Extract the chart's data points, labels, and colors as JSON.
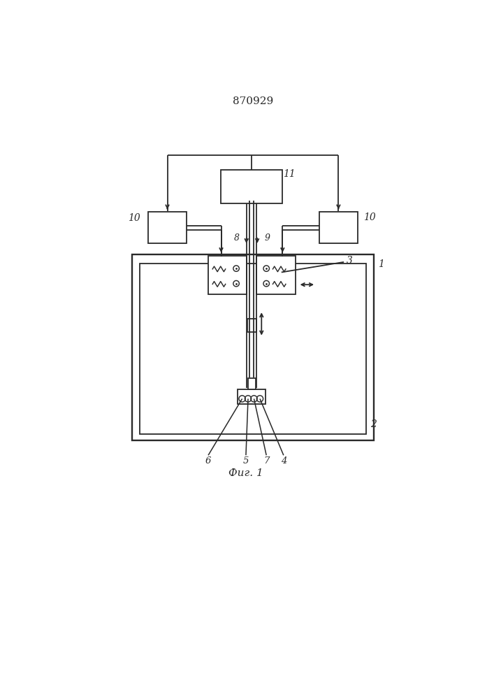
{
  "title": "870929",
  "fig_label": "Фиг. 1",
  "bg_color": "#ffffff",
  "line_color": "#2a2a2a",
  "lw": 1.3,
  "fig_width": 7.07,
  "fig_height": 10.0
}
